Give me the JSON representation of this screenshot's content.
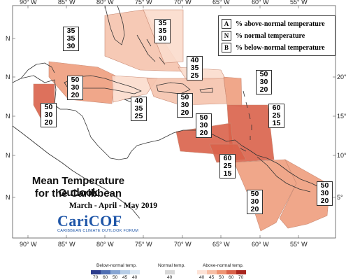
{
  "map": {
    "title_line1": "Mean Temperature Outlook",
    "title_line2": "for the Caribbean",
    "subtitle": "March - April - May 2019",
    "logo_main": "CariCOF",
    "logo_sub": "CARIBBEAN CLIMATE OUTLOOK FORUM",
    "lon_labels": [
      "90° W",
      "85° W",
      "80° W",
      "75° W",
      "70° W",
      "65° W",
      "60° W",
      "55° W"
    ],
    "lat_labels_right": [
      "20°",
      "15°",
      "10°",
      "5°"
    ],
    "lat_labels_left": [
      "N",
      "N",
      "N",
      "N",
      "N"
    ],
    "colors": {
      "ocean": "#ffffff",
      "land_outline": "#333333",
      "region_35": "#fbdbcc",
      "region_40": "#f5c3ad",
      "region_50": "#ee9d7d",
      "region_60": "#d9624a"
    }
  },
  "legend": {
    "items": [
      {
        "key": "A",
        "label": "% above-normal temperature"
      },
      {
        "key": "N",
        "label": "% normal temperature"
      },
      {
        "key": "B",
        "label": "% below-normal temperature"
      }
    ]
  },
  "probabilities": [
    {
      "region": "bahamas-north",
      "values": [
        "35",
        "35",
        "30"
      ]
    },
    {
      "region": "gulf-mexico-east",
      "values": [
        "35",
        "35",
        "30"
      ]
    },
    {
      "region": "belize-yucatan",
      "values": [
        "50",
        "30",
        "20"
      ]
    },
    {
      "region": "central-america-north",
      "values": [
        "50",
        "30",
        "20"
      ]
    },
    {
      "region": "cuba-jamaica",
      "values": [
        "40",
        "35",
        "25"
      ]
    },
    {
      "region": "turks-caicos",
      "values": [
        "40",
        "35",
        "25"
      ]
    },
    {
      "region": "hispaniola-puerto-rico",
      "values": [
        "50",
        "30",
        "20"
      ]
    },
    {
      "region": "leeward-islands",
      "values": [
        "50",
        "30",
        "20"
      ]
    },
    {
      "region": "windward-islands",
      "values": [
        "60",
        "25",
        "15"
      ]
    },
    {
      "region": "abc-islands",
      "values": [
        "50",
        "30",
        "20"
      ]
    },
    {
      "region": "trinidad-tobago",
      "values": [
        "60",
        "25",
        "15"
      ]
    },
    {
      "region": "guyana",
      "values": [
        "50",
        "30",
        "20"
      ]
    },
    {
      "region": "suriname-french-guiana",
      "values": [
        "50",
        "30",
        "20"
      ]
    }
  ],
  "colorbar": {
    "below_label": "Below-normal temp.",
    "normal_label": "Normal temp.",
    "above_label": "Above-normal temp.",
    "below_ticks": [
      "70",
      "60",
      "50",
      "45",
      "40"
    ],
    "normal_ticks": [
      "40"
    ],
    "above_ticks": [
      "40",
      "45",
      "50",
      "60",
      "70"
    ],
    "below_colors": [
      "#2b3c8c",
      "#4f6fb3",
      "#86a5d3",
      "#b7cde6",
      "#dde8f3"
    ],
    "normal_color": "#d8d8d8",
    "above_colors": [
      "#fde3d7",
      "#f7bfa6",
      "#ee9574",
      "#d9624a",
      "#a8261e"
    ]
  }
}
